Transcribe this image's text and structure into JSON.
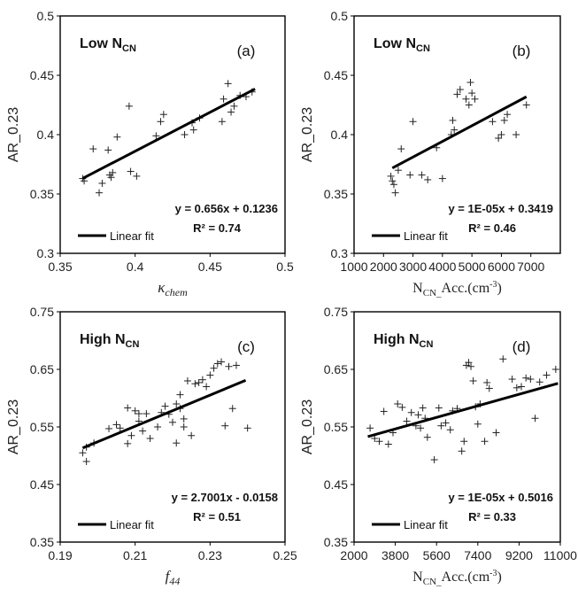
{
  "chart_data": [
    {
      "type": "scatter",
      "panel_label": "(a)",
      "title": "Low N",
      "title_sub": "CN",
      "xlabel": "κ",
      "xlabel_sub": "chem",
      "xlabel_sup": "",
      "ylabel": "AR_0.23",
      "xlim": [
        0.35,
        0.5
      ],
      "ylim": [
        0.3,
        0.5
      ],
      "xticks": [
        "0.35",
        "0.4",
        "0.45",
        "0.5"
      ],
      "yticks": [
        "0.3",
        "0.35",
        "0.4",
        "0.45",
        "0.5"
      ],
      "equation": "y = 0.656x + 0.1236",
      "r2_label": "R² = 0.74",
      "legend": "Linear fit",
      "fit": {
        "x": [
          0.365,
          0.48
        ],
        "y": [
          0.3631,
          0.4385
        ]
      },
      "points": [
        [
          0.365,
          0.363
        ],
        [
          0.366,
          0.361
        ],
        [
          0.372,
          0.388
        ],
        [
          0.376,
          0.351
        ],
        [
          0.378,
          0.359
        ],
        [
          0.382,
          0.387
        ],
        [
          0.383,
          0.366
        ],
        [
          0.385,
          0.368
        ],
        [
          0.384,
          0.364
        ],
        [
          0.388,
          0.398
        ],
        [
          0.396,
          0.424
        ],
        [
          0.397,
          0.369
        ],
        [
          0.401,
          0.365
        ],
        [
          0.414,
          0.399
        ],
        [
          0.417,
          0.411
        ],
        [
          0.419,
          0.417
        ],
        [
          0.433,
          0.4
        ],
        [
          0.438,
          0.41
        ],
        [
          0.439,
          0.404
        ],
        [
          0.443,
          0.414
        ],
        [
          0.458,
          0.411
        ],
        [
          0.459,
          0.43
        ],
        [
          0.462,
          0.443
        ],
        [
          0.464,
          0.419
        ],
        [
          0.466,
          0.424
        ],
        [
          0.47,
          0.433
        ],
        [
          0.474,
          0.432
        ],
        [
          0.478,
          0.436
        ]
      ]
    },
    {
      "type": "scatter",
      "panel_label": "(b)",
      "title": "Low N",
      "title_sub": "CN",
      "xlabel": "N",
      "xlabel_sub": "CN_",
      "xlabel_rest": "Acc.(cm",
      "xlabel_sup": "-3",
      "xlabel_end": ")",
      "ylabel": "AR_0.23",
      "xlim": [
        1000,
        8000
      ],
      "ylim": [
        0.3,
        0.5
      ],
      "xticks": [
        "1000",
        "2000",
        "3000",
        "4000",
        "5000",
        "6000",
        "7000"
      ],
      "yticks": [
        "0.3",
        "0.35",
        "0.4",
        "0.45",
        "0.5"
      ],
      "equation": "y = 1E-05x + 0.3419",
      "r2_label": "R² = 0.46",
      "legend": "Linear fit",
      "fit": {
        "x": [
          2300,
          6850
        ],
        "y": [
          0.3719,
          0.4319
        ]
      },
      "points": [
        [
          2250,
          0.365
        ],
        [
          2300,
          0.361
        ],
        [
          2350,
          0.358
        ],
        [
          2400,
          0.351
        ],
        [
          2500,
          0.37
        ],
        [
          2600,
          0.388
        ],
        [
          2900,
          0.366
        ],
        [
          3000,
          0.411
        ],
        [
          3300,
          0.366
        ],
        [
          3500,
          0.362
        ],
        [
          3800,
          0.389
        ],
        [
          4000,
          0.363
        ],
        [
          4300,
          0.4
        ],
        [
          4350,
          0.412
        ],
        [
          4400,
          0.404
        ],
        [
          4500,
          0.434
        ],
        [
          4600,
          0.438
        ],
        [
          4800,
          0.43
        ],
        [
          4900,
          0.425
        ],
        [
          4950,
          0.444
        ],
        [
          5000,
          0.435
        ],
        [
          5100,
          0.43
        ],
        [
          5700,
          0.411
        ],
        [
          5900,
          0.397
        ],
        [
          6000,
          0.4
        ],
        [
          6100,
          0.412
        ],
        [
          6200,
          0.417
        ],
        [
          6500,
          0.4
        ],
        [
          6850,
          0.425
        ]
      ]
    },
    {
      "type": "scatter",
      "panel_label": "(c)",
      "title": "High N",
      "title_sub": "CN",
      "xlabel": "f",
      "xlabel_sub": "44",
      "xlabel_sup": "",
      "ylabel": "AR_0.23",
      "xlim": [
        0.19,
        0.25
      ],
      "ylim": [
        0.35,
        0.75
      ],
      "xticks": [
        "0.19",
        "0.21",
        "0.23",
        "0.25"
      ],
      "yticks": [
        "0.35",
        "0.45",
        "0.55",
        "0.65",
        "0.75"
      ],
      "equation": "y = 2.7001x - 0.0158",
      "r2_label": "R² = 0.51",
      "legend": "Linear fit",
      "fit": {
        "x": [
          0.196,
          0.2395
        ],
        "y": [
          0.5134,
          0.6309
        ]
      },
      "points": [
        [
          0.196,
          0.505
        ],
        [
          0.197,
          0.49
        ],
        [
          0.197,
          0.515
        ],
        [
          0.199,
          0.522
        ],
        [
          0.203,
          0.547
        ],
        [
          0.205,
          0.554
        ],
        [
          0.206,
          0.548
        ],
        [
          0.208,
          0.583
        ],
        [
          0.208,
          0.521
        ],
        [
          0.209,
          0.535
        ],
        [
          0.21,
          0.578
        ],
        [
          0.211,
          0.573
        ],
        [
          0.211,
          0.56
        ],
        [
          0.212,
          0.543
        ],
        [
          0.213,
          0.573
        ],
        [
          0.214,
          0.53
        ],
        [
          0.216,
          0.55
        ],
        [
          0.217,
          0.575
        ],
        [
          0.218,
          0.586
        ],
        [
          0.219,
          0.572
        ],
        [
          0.22,
          0.558
        ],
        [
          0.221,
          0.59
        ],
        [
          0.221,
          0.522
        ],
        [
          0.222,
          0.582
        ],
        [
          0.222,
          0.606
        ],
        [
          0.223,
          0.55
        ],
        [
          0.223,
          0.564
        ],
        [
          0.224,
          0.63
        ],
        [
          0.225,
          0.535
        ],
        [
          0.226,
          0.625
        ],
        [
          0.227,
          0.627
        ],
        [
          0.228,
          0.632
        ],
        [
          0.229,
          0.62
        ],
        [
          0.23,
          0.64
        ],
        [
          0.231,
          0.652
        ],
        [
          0.232,
          0.66
        ],
        [
          0.233,
          0.663
        ],
        [
          0.234,
          0.552
        ],
        [
          0.235,
          0.655
        ],
        [
          0.236,
          0.582
        ],
        [
          0.237,
          0.657
        ],
        [
          0.24,
          0.548
        ]
      ]
    },
    {
      "type": "scatter",
      "panel_label": "(d)",
      "title": "High N",
      "title_sub": "CN",
      "xlabel": "N",
      "xlabel_sub": "CN_",
      "xlabel_rest": "Acc.(cm",
      "xlabel_sup": "-3",
      "xlabel_end": ")",
      "ylabel": "AR_0.23",
      "xlim": [
        2000,
        11000
      ],
      "ylim": [
        0.35,
        0.75
      ],
      "xticks": [
        "2000",
        "3800",
        "5600",
        "7400",
        "9200",
        "11000"
      ],
      "xtick_values": [
        2000,
        3800,
        5600,
        7400,
        9200,
        11000
      ],
      "yticks": [
        "0.35",
        "0.45",
        "0.55",
        "0.65",
        "0.75"
      ],
      "equation": "y = 1E-05x + 0.5016",
      "r2_label": "R² = 0.33",
      "legend": "Linear fit",
      "fit": {
        "x": [
          2600,
          10900
        ],
        "y": [
          0.5332,
          0.6256
        ]
      },
      "points": [
        [
          2700,
          0.548
        ],
        [
          2900,
          0.53
        ],
        [
          3100,
          0.525
        ],
        [
          3300,
          0.577
        ],
        [
          3500,
          0.52
        ],
        [
          3700,
          0.54
        ],
        [
          3900,
          0.59
        ],
        [
          4100,
          0.584
        ],
        [
          4300,
          0.56
        ],
        [
          4500,
          0.575
        ],
        [
          4700,
          0.552
        ],
        [
          4800,
          0.571
        ],
        [
          4900,
          0.548
        ],
        [
          5000,
          0.583
        ],
        [
          5100,
          0.565
        ],
        [
          5200,
          0.532
        ],
        [
          5500,
          0.493
        ],
        [
          5700,
          0.583
        ],
        [
          5800,
          0.552
        ],
        [
          6000,
          0.557
        ],
        [
          6200,
          0.545
        ],
        [
          6300,
          0.578
        ],
        [
          6500,
          0.582
        ],
        [
          6700,
          0.508
        ],
        [
          6800,
          0.525
        ],
        [
          6900,
          0.657
        ],
        [
          7000,
          0.662
        ],
        [
          7100,
          0.655
        ],
        [
          7200,
          0.63
        ],
        [
          7300,
          0.585
        ],
        [
          7400,
          0.555
        ],
        [
          7500,
          0.59
        ],
        [
          7700,
          0.525
        ],
        [
          7800,
          0.627
        ],
        [
          7900,
          0.617
        ],
        [
          8200,
          0.54
        ],
        [
          8500,
          0.668
        ],
        [
          8900,
          0.633
        ],
        [
          9100,
          0.618
        ],
        [
          9300,
          0.62
        ],
        [
          9500,
          0.635
        ],
        [
          9700,
          0.633
        ],
        [
          9900,
          0.565
        ],
        [
          10100,
          0.628
        ],
        [
          10400,
          0.64
        ],
        [
          10800,
          0.65
        ]
      ]
    }
  ]
}
